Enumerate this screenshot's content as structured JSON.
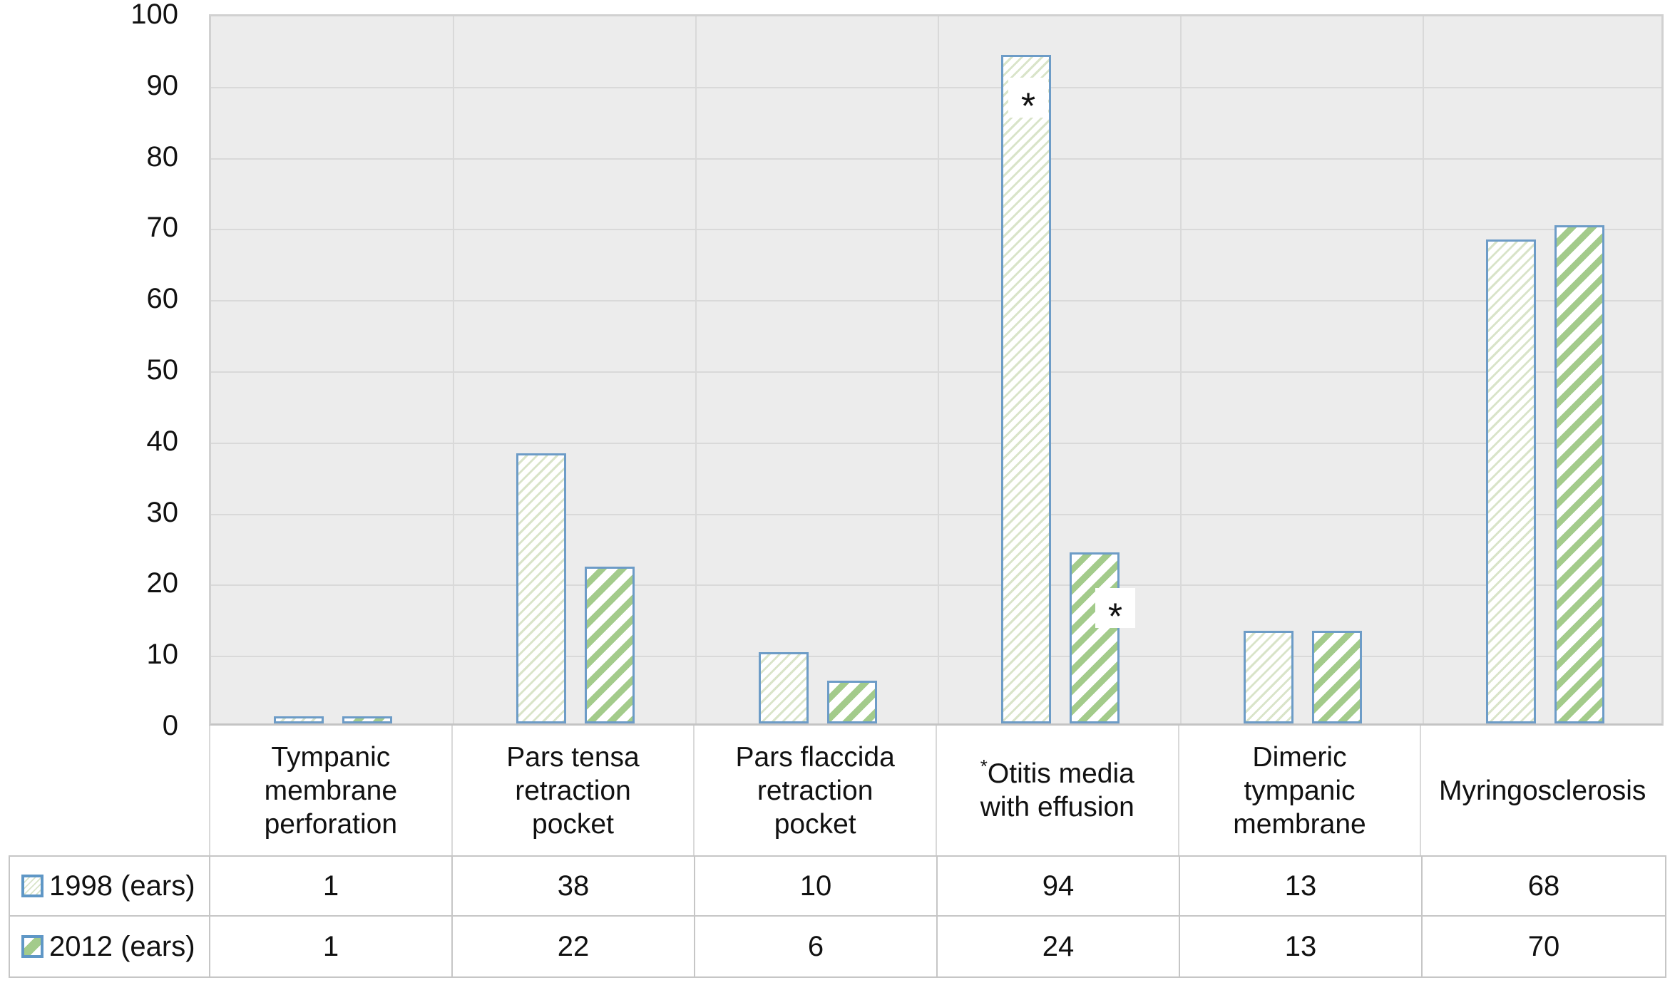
{
  "chart_data": {
    "type": "bar",
    "title": "",
    "xlabel": "",
    "ylabel": "",
    "ylim": [
      0,
      100
    ],
    "yticks": [
      0,
      10,
      20,
      30,
      40,
      50,
      60,
      70,
      80,
      90,
      100
    ],
    "grid": true,
    "legend_position": "table-rows-left",
    "categories": [
      "Tympanic membrane perforation",
      "Pars tensa retraction pocket",
      "Pars flaccida retraction pocket",
      "*Otitis media with effusion",
      "Dimeric tympanic membrane",
      "Myringosclerosis"
    ],
    "category_label_lines": [
      [
        "Tympanic",
        "membrane",
        "perforation"
      ],
      [
        "Pars tensa",
        "retraction",
        "pocket"
      ],
      [
        "Pars flaccida",
        "retraction",
        "pocket"
      ],
      [
        "*Otitis media",
        "with effusion"
      ],
      [
        "Dimeric",
        "tympanic",
        "membrane"
      ],
      [
        "Myringosclerosis"
      ]
    ],
    "series": [
      {
        "name": "1998 (ears)",
        "values": [
          1,
          38,
          10,
          94,
          13,
          68
        ],
        "style": "light-diagonal-hatch"
      },
      {
        "name": "2012 (ears)",
        "values": [
          1,
          22,
          6,
          24,
          13,
          70
        ],
        "style": "bold-green-diagonal-stripes"
      }
    ],
    "annotations": [
      {
        "text": "*",
        "series_index": 0,
        "category_index": 3,
        "placement": "inside-top-right"
      },
      {
        "text": "*",
        "series_index": 1,
        "category_index": 3,
        "placement": "straddle-right-edge"
      }
    ]
  },
  "colors": {
    "bar_border": "#6d9cc7",
    "bar_fill": "#ffffff",
    "hatch_1998": "#d9e4c9",
    "stripe_2012": "#a3cb8b",
    "plot_background": "#ececec",
    "gridline": "#d9d9d9",
    "plot_border": "#d1d1d1",
    "table_border": "#c6c6c6",
    "text": "#111111"
  }
}
